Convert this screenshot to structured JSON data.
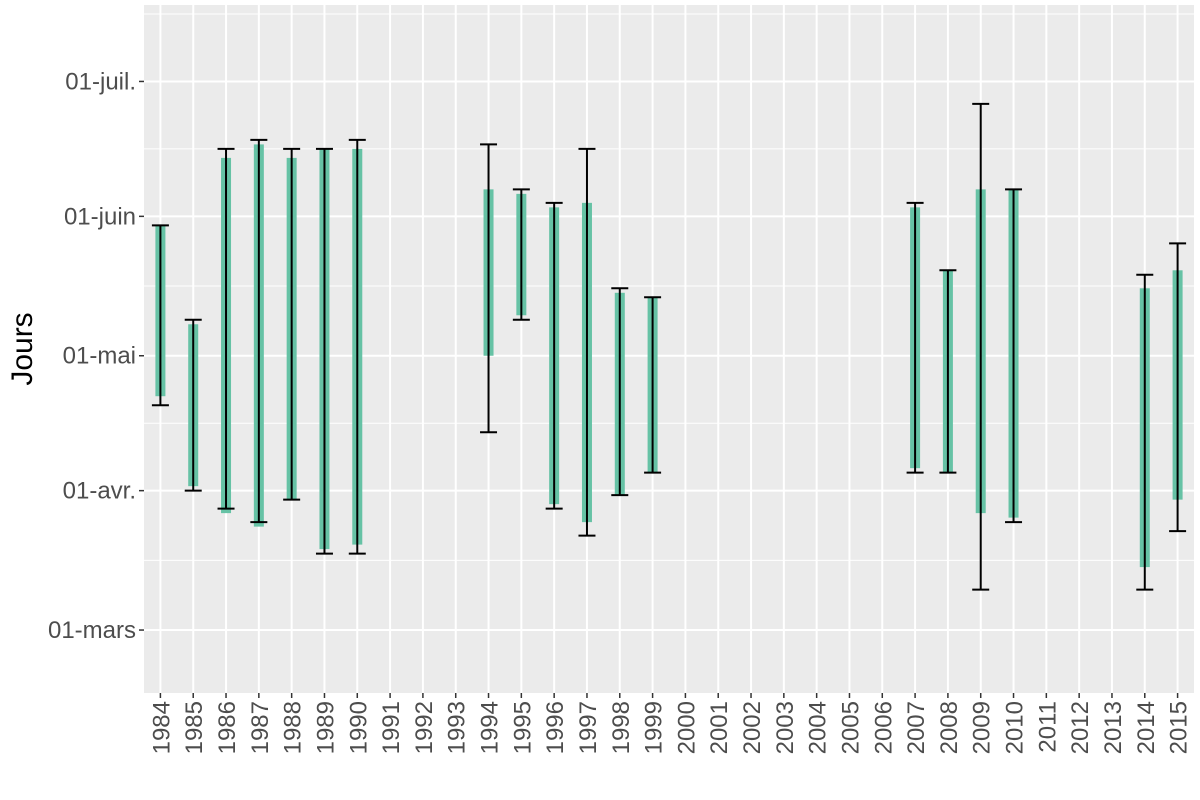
{
  "chart_data": {
    "type": "bar",
    "subtype": "floating range bars with error bars",
    "title": "",
    "xlabel": "",
    "ylabel": "Jours",
    "y_unit": "day of year",
    "ylim": [
      46,
      199
    ],
    "y_ticks": [
      {
        "label": "01-mars",
        "value": 60
      },
      {
        "label": "01-avr.",
        "value": 91
      },
      {
        "label": "01-mai",
        "value": 121
      },
      {
        "label": "01-juin",
        "value": 152
      },
      {
        "label": "01-juil.",
        "value": 182
      }
    ],
    "categories": [
      "1984",
      "1985",
      "1986",
      "1987",
      "1988",
      "1989",
      "1990",
      "1991",
      "1992",
      "1993",
      "1994",
      "1995",
      "1996",
      "1997",
      "1998",
      "1999",
      "2000",
      "2001",
      "2002",
      "2003",
      "2004",
      "2005",
      "2006",
      "2007",
      "2008",
      "2009",
      "2010",
      "2011",
      "2012",
      "2013",
      "2014",
      "2015"
    ],
    "series": [
      {
        "bar_low": [
          112,
          92,
          86,
          83,
          89,
          78,
          79,
          null,
          null,
          null,
          121,
          130,
          88,
          84,
          90,
          95,
          null,
          null,
          null,
          null,
          null,
          null,
          null,
          96,
          95,
          86,
          85,
          null,
          null,
          null,
          74,
          89
        ],
        "bar_high": [
          150,
          128,
          165,
          168,
          165,
          167,
          167,
          null,
          null,
          null,
          158,
          157,
          154,
          155,
          135,
          134,
          null,
          null,
          null,
          null,
          null,
          null,
          null,
          154,
          140,
          158,
          158,
          null,
          null,
          null,
          136,
          140
        ],
        "err_low": [
          110,
          91,
          87,
          84,
          89,
          77,
          77,
          null,
          null,
          null,
          104,
          129,
          87,
          81,
          90,
          95,
          null,
          null,
          null,
          null,
          null,
          null,
          null,
          95,
          95,
          69,
          84,
          null,
          null,
          null,
          69,
          82
        ],
        "err_high": [
          150,
          129,
          167,
          169,
          167,
          167,
          169,
          null,
          null,
          null,
          168,
          158,
          155,
          167,
          136,
          134,
          null,
          null,
          null,
          null,
          null,
          null,
          null,
          155,
          140,
          177,
          158,
          null,
          null,
          null,
          139,
          146
        ]
      }
    ],
    "colors": {
      "bar": "#66c2a5",
      "error_bar": "#000000",
      "panel_background": "#ebebeb",
      "grid": "#ffffff",
      "tick_text": "#4d4d4d"
    },
    "grid": true,
    "legend": "none"
  }
}
